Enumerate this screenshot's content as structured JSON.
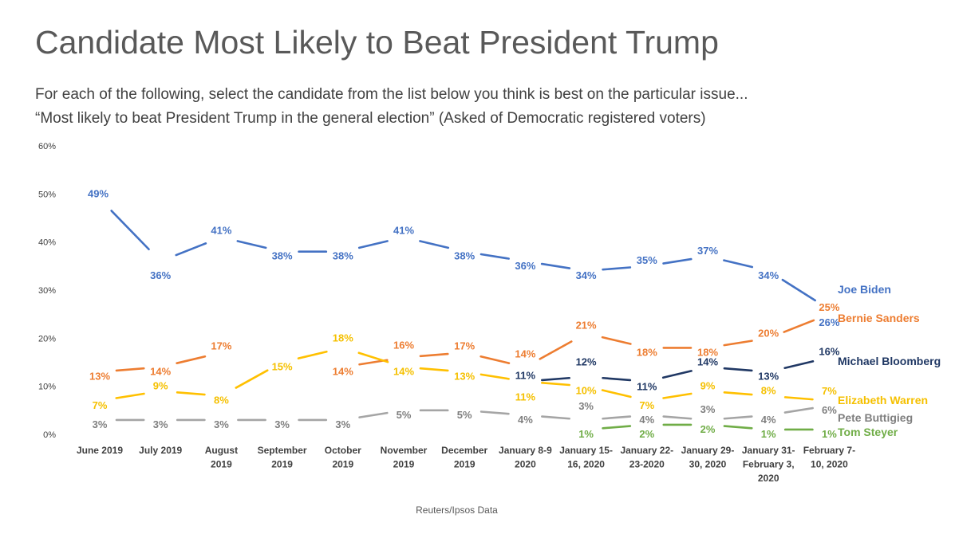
{
  "title": "Candidate Most Likely to Beat President Trump",
  "subtitle_line1": "For each of the following, select the candidate from the list below you think is best on the particular issue...",
  "subtitle_line2": "“Most likely to beat President Trump in the general election” (Asked of Democratic registered voters)",
  "source": "Reuters/Ipsos Data",
  "chart_data": {
    "type": "line",
    "title": "Candidate Most Likely to Beat President Trump",
    "xlabel": "",
    "ylabel": "",
    "ylim": [
      0,
      60
    ],
    "yticks": [
      "0%",
      "10%",
      "20%",
      "30%",
      "40%",
      "50%",
      "60%"
    ],
    "grid": false,
    "categories": [
      [
        "June 2019"
      ],
      [
        "July 2019"
      ],
      [
        "August",
        "2019"
      ],
      [
        "September",
        "2019"
      ],
      [
        "October",
        "2019"
      ],
      [
        "November",
        "2019"
      ],
      [
        "December",
        "2019"
      ],
      [
        "January 8-9",
        "2020"
      ],
      [
        "January 15-",
        "16, 2020"
      ],
      [
        "January 22-",
        "23-2020"
      ],
      [
        "January 29-",
        "30, 2020"
      ],
      [
        "January 31-",
        "February 3,",
        "2020"
      ],
      [
        "February 7-",
        "10, 2020"
      ]
    ],
    "series": [
      {
        "name": "Joe Biden",
        "color": "#4472c4",
        "labelColor": "#4472c4",
        "values": [
          49,
          36,
          41,
          38,
          38,
          41,
          38,
          36,
          34,
          35,
          37,
          34,
          26
        ]
      },
      {
        "name": "Bernie Sanders",
        "color": "#ed7d31",
        "labelColor": "#ed7d31",
        "values": [
          13,
          14,
          17,
          null,
          14,
          16,
          17,
          14,
          21,
          18,
          18,
          20,
          25
        ]
      },
      {
        "name": "Michael Bloomberg",
        "color": "#203864",
        "labelColor": "#203864",
        "values": [
          null,
          null,
          null,
          null,
          null,
          null,
          null,
          11,
          12,
          11,
          14,
          13,
          16
        ]
      },
      {
        "name": "Elizabeth Warren",
        "color": "#ffc000",
        "labelColor": "#f5c000",
        "values": [
          7,
          9,
          8,
          15,
          18,
          14,
          13,
          11,
          10,
          7,
          9,
          8,
          7
        ]
      },
      {
        "name": "Pete Buttigieg",
        "color": "#a5a5a5",
        "labelColor": "#7f7f7f",
        "values": [
          3,
          3,
          3,
          3,
          3,
          5,
          5,
          4,
          3,
          4,
          3,
          4,
          6
        ]
      },
      {
        "name": "Tom Steyer",
        "color": "#70ad47",
        "labelColor": "#70ad47",
        "values": [
          null,
          null,
          null,
          null,
          null,
          null,
          null,
          null,
          1,
          2,
          2,
          1,
          1
        ]
      }
    ]
  }
}
